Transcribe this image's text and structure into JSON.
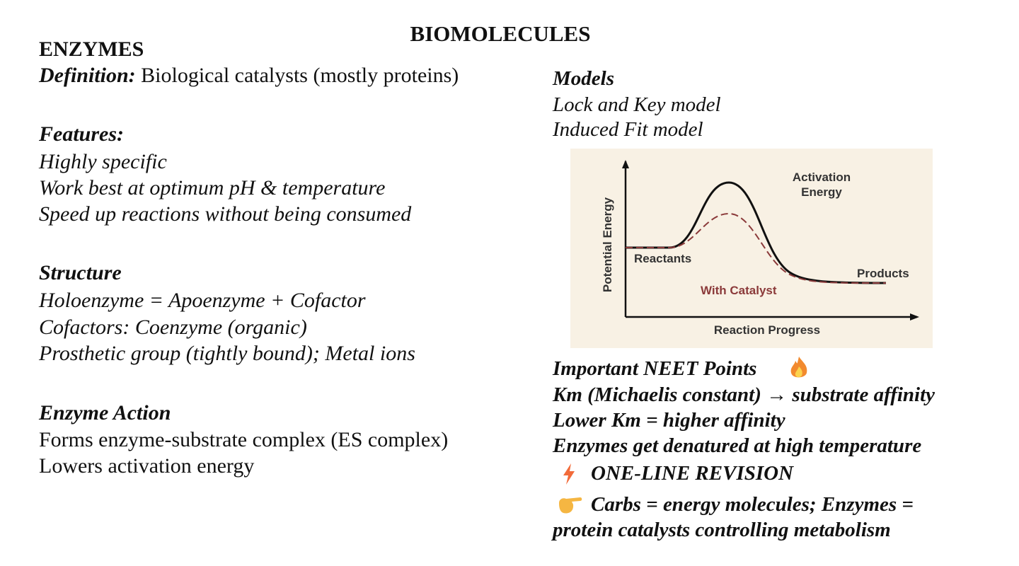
{
  "title": "BIOMOLECULES",
  "left": {
    "heading": "ENZYMES",
    "definition": {
      "label": "Definition:",
      "text": "Biological catalysts (mostly proteins)"
    },
    "features": {
      "heading": "Features:",
      "items": [
        "Highly specific",
        "Work best at optimum pH & temperature",
        "Speed up reactions without being consumed"
      ]
    },
    "structure": {
      "heading": "Structure",
      "items": [
        "Holoenzyme = Apoenzyme + Cofactor",
        "Cofactors: Coenzyme (organic)",
        "Prosthetic group (tightly bound); Metal ions"
      ]
    },
    "action": {
      "heading": "Enzyme Action",
      "items": [
        "Forms enzyme-substrate complex (ES complex)",
        "Lowers activation energy"
      ]
    }
  },
  "right": {
    "models": {
      "heading": "Models",
      "items": [
        "Lock and Key model",
        "Induced Fit model"
      ]
    },
    "diagram": {
      "activation": "Activation",
      "energy": "Energy",
      "reactants": "Reactants",
      "products": "Products",
      "catalyst": "With Catalyst",
      "x_label": "Reaction Progress",
      "y_label": "Potential Energy"
    },
    "neet": {
      "heading": "Important NEET Points",
      "items": [
        "Km (Michaelis constant) → substrate affinity",
        "Lower Km = higher affinity",
        "Enzymes get denatured at high temperature"
      ]
    },
    "revision": {
      "heading": "ONE-LINE REVISION",
      "text": "Carbs = energy molecules; Enzymes = protein catalysts controlling metabolism"
    }
  }
}
